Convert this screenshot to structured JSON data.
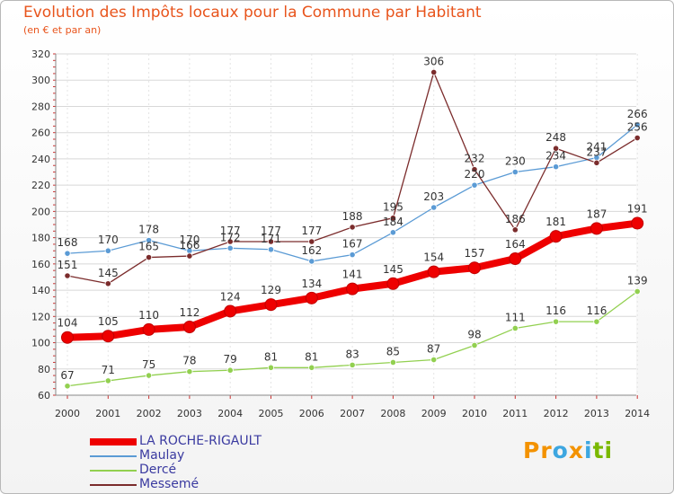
{
  "title": "Evolution des Impôts locaux pour la Commune par Habitant",
  "subtitle": "(en € et par an)",
  "logo": {
    "parts": [
      "Pr",
      "o",
      "x",
      "i",
      "ti"
    ],
    "colors": [
      "#f39200",
      "#3da6e0",
      "#f39200",
      "#3da6e0",
      "#7ab800"
    ]
  },
  "chart_data": {
    "type": "line",
    "title": "Evolution des Impôts locaux pour la Commune par Habitant",
    "xlabel": "",
    "ylabel": "",
    "ylim": [
      60,
      320
    ],
    "yticks": [
      60,
      80,
      100,
      120,
      140,
      160,
      180,
      200,
      220,
      240,
      260,
      280,
      300,
      320
    ],
    "categories": [
      "2000",
      "2001",
      "2002",
      "2003",
      "2004",
      "2005",
      "2006",
      "2007",
      "2008",
      "2009",
      "2010",
      "2011",
      "2012",
      "2013",
      "2014"
    ],
    "series": [
      {
        "name": "LA ROCHE-RIGAULT",
        "color": "#ee0000",
        "values": [
          104,
          105,
          110,
          112,
          124,
          129,
          134,
          141,
          145,
          154,
          157,
          164,
          181,
          187,
          191
        ]
      },
      {
        "name": "Maulay",
        "color": "#5b9bd5",
        "values": [
          168,
          170,
          178,
          170,
          172,
          171,
          162,
          167,
          184,
          203,
          220,
          230,
          234,
          241,
          266
        ]
      },
      {
        "name": "Dercé",
        "color": "#92d050",
        "values": [
          67,
          71,
          75,
          78,
          79,
          81,
          81,
          83,
          85,
          87,
          98,
          111,
          116,
          116,
          139
        ]
      },
      {
        "name": "Messemé",
        "color": "#7b2c2c",
        "values": [
          151,
          145,
          165,
          166,
          177,
          177,
          177,
          188,
          195,
          306,
          232,
          186,
          248,
          237,
          256
        ]
      }
    ]
  }
}
